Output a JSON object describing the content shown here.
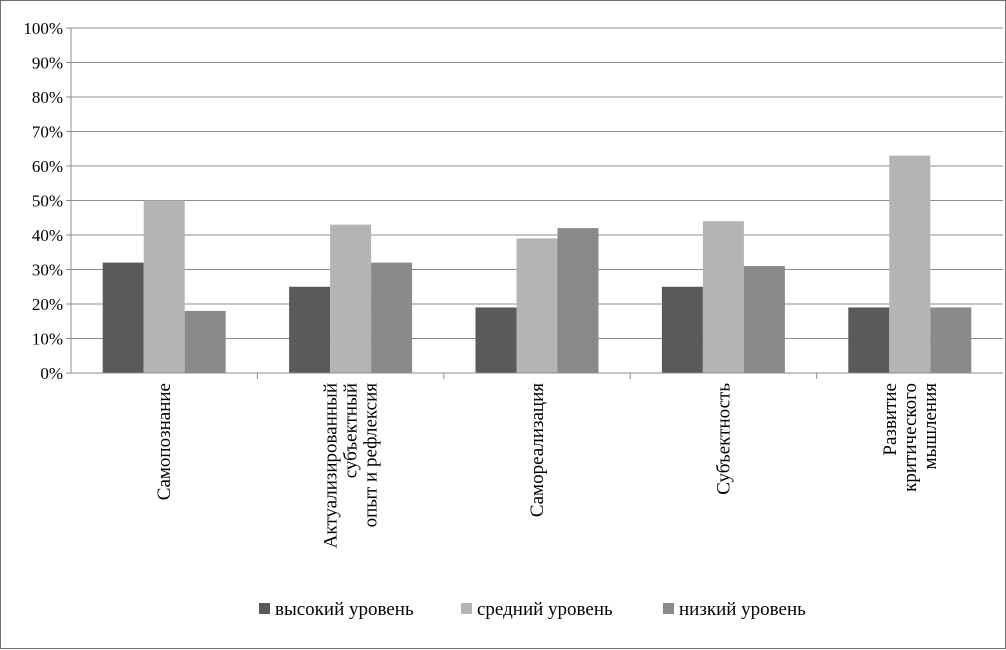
{
  "chart_data": {
    "type": "bar",
    "title": "",
    "xlabel": "",
    "ylabel": "",
    "ylim": [
      0,
      100
    ],
    "yticks": [
      "0%",
      "10%",
      "20%",
      "30%",
      "40%",
      "50%",
      "60%",
      "70%",
      "80%",
      "90%",
      "100%"
    ],
    "grid": true,
    "legend_position": "bottom",
    "categories": [
      [
        "Самопознание"
      ],
      [
        "Актуализированный",
        "субъектный",
        "опыт и рефлексия"
      ],
      [
        "Самореализация"
      ],
      [
        "Субъектность"
      ],
      [
        "Развитие",
        "критического",
        "мышления"
      ]
    ],
    "series": [
      {
        "name": "высокий уровень",
        "color": "#5a5a5a",
        "values": [
          32,
          25,
          19,
          25,
          19
        ]
      },
      {
        "name": "средний уровень",
        "color": "#b4b4b4",
        "values": [
          50,
          43,
          39,
          44,
          63
        ]
      },
      {
        "name": "низкий уровень",
        "color": "#8a8a8a",
        "values": [
          18,
          32,
          42,
          31,
          19
        ]
      }
    ]
  }
}
